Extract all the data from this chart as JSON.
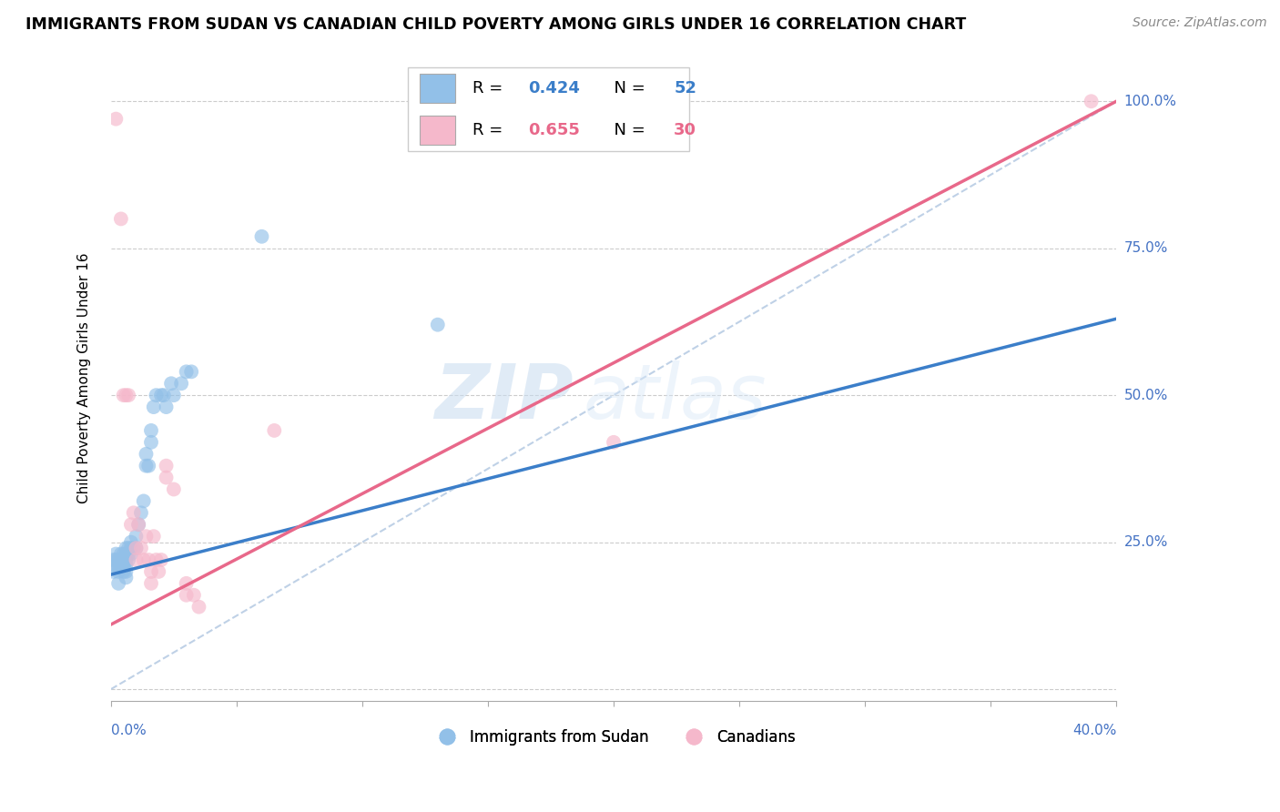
{
  "title": "IMMIGRANTS FROM SUDAN VS CANADIAN CHILD POVERTY AMONG GIRLS UNDER 16 CORRELATION CHART",
  "source": "Source: ZipAtlas.com",
  "ylabel": "Child Poverty Among Girls Under 16",
  "xlim": [
    0.0,
    0.4
  ],
  "ylim": [
    -0.02,
    1.08
  ],
  "yticks": [
    0.0,
    0.25,
    0.5,
    0.75,
    1.0
  ],
  "ytick_labels": [
    "",
    "25.0%",
    "50.0%",
    "75.0%",
    "100.0%"
  ],
  "xticks": [
    0.0,
    0.05,
    0.1,
    0.15,
    0.2,
    0.25,
    0.3,
    0.35,
    0.4
  ],
  "r_blue": 0.424,
  "n_blue": 52,
  "r_pink": 0.655,
  "n_pink": 30,
  "legend_label_blue": "Immigrants from Sudan",
  "legend_label_pink": "Canadians",
  "blue_color": "#92C0E8",
  "pink_color": "#F5B8CB",
  "blue_line_color": "#3B7EC9",
  "pink_line_color": "#E8688A",
  "diagonal_color": "#B8CCE4",
  "watermark_zip": "ZIP",
  "watermark_atlas": "atlas",
  "blue_scatter_x": [
    0.001,
    0.001,
    0.002,
    0.002,
    0.002,
    0.003,
    0.003,
    0.003,
    0.003,
    0.004,
    0.004,
    0.004,
    0.005,
    0.005,
    0.005,
    0.005,
    0.005,
    0.006,
    0.006,
    0.006,
    0.006,
    0.006,
    0.006,
    0.007,
    0.007,
    0.007,
    0.008,
    0.008,
    0.008,
    0.009,
    0.01,
    0.01,
    0.011,
    0.012,
    0.013,
    0.014,
    0.014,
    0.015,
    0.016,
    0.016,
    0.017,
    0.018,
    0.02,
    0.021,
    0.022,
    0.024,
    0.025,
    0.028,
    0.03,
    0.032,
    0.06,
    0.13
  ],
  "blue_scatter_y": [
    0.2,
    0.22,
    0.21,
    0.22,
    0.23,
    0.18,
    0.2,
    0.21,
    0.22,
    0.21,
    0.22,
    0.23,
    0.2,
    0.21,
    0.22,
    0.22,
    0.23,
    0.19,
    0.2,
    0.21,
    0.22,
    0.23,
    0.24,
    0.22,
    0.23,
    0.24,
    0.23,
    0.24,
    0.25,
    0.24,
    0.24,
    0.26,
    0.28,
    0.3,
    0.32,
    0.38,
    0.4,
    0.38,
    0.42,
    0.44,
    0.48,
    0.5,
    0.5,
    0.5,
    0.48,
    0.52,
    0.5,
    0.52,
    0.54,
    0.54,
    0.77,
    0.62
  ],
  "pink_scatter_x": [
    0.002,
    0.004,
    0.005,
    0.006,
    0.007,
    0.008,
    0.009,
    0.01,
    0.01,
    0.011,
    0.012,
    0.013,
    0.014,
    0.015,
    0.016,
    0.016,
    0.017,
    0.018,
    0.019,
    0.02,
    0.022,
    0.022,
    0.025,
    0.03,
    0.03,
    0.033,
    0.035,
    0.065,
    0.2,
    0.39
  ],
  "pink_scatter_y": [
    0.97,
    0.8,
    0.5,
    0.5,
    0.5,
    0.28,
    0.3,
    0.22,
    0.24,
    0.28,
    0.24,
    0.22,
    0.26,
    0.22,
    0.18,
    0.2,
    0.26,
    0.22,
    0.2,
    0.22,
    0.36,
    0.38,
    0.34,
    0.16,
    0.18,
    0.16,
    0.14,
    0.44,
    0.42,
    1.0
  ],
  "blue_line_x0": 0.0,
  "blue_line_y0": 0.195,
  "blue_line_x1": 0.4,
  "blue_line_y1": 0.63,
  "pink_line_x0": 0.0,
  "pink_line_y0": 0.11,
  "pink_line_x1": 0.4,
  "pink_line_y1": 1.0
}
